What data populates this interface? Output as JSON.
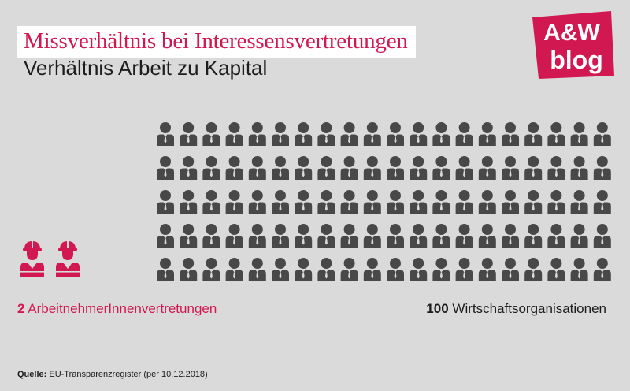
{
  "header": {
    "title": "Missverhältnis bei Interessensvertretungen",
    "subtitle": "Verhältnis Arbeit zu Kapital"
  },
  "logo": {
    "line1": "A&W",
    "line2": "blog",
    "color": "#d21850"
  },
  "chart_data": {
    "type": "pictogram",
    "series": [
      {
        "name": "ArbeitnehmerInnenvertretungen",
        "value": 2,
        "color": "#d21850",
        "icon": "worker-hardhat-icon"
      },
      {
        "name": "Wirtschaftsorganisationen",
        "value": 100,
        "color": "#484848",
        "icon": "businessman-tie-icon"
      }
    ]
  },
  "labels": {
    "left_value": "2",
    "left_text": "ArbeitnehmerInnenvertretungen",
    "right_value": "100",
    "right_text": "Wirtschaftsorganisationen"
  },
  "source": {
    "label": "Quelle:",
    "text": "EU-Transparenzregister (per 10.12.2018)"
  }
}
